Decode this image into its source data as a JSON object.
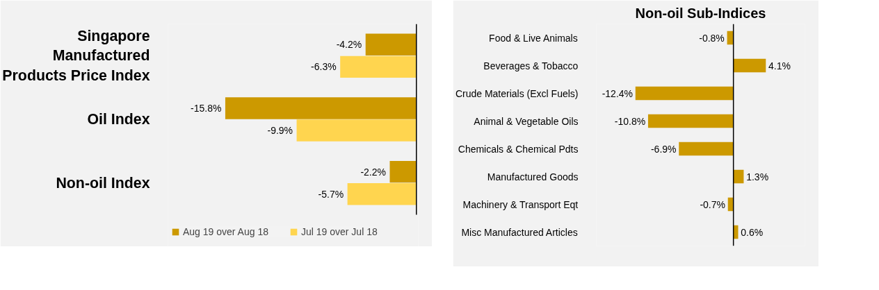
{
  "chart_data": [
    {
      "type": "bar",
      "orientation": "horizontal",
      "categories": [
        "Singapore Manufactured Products Price Index",
        "Oil Index",
        "Non-oil Index"
      ],
      "legend": "bottom",
      "series": [
        {
          "name": "Aug 19 over Aug 18",
          "color": "#cc9900",
          "values": [
            -4.2,
            -15.8,
            -2.2
          ],
          "value_labels": [
            "-4.2%",
            "-15.8%",
            "-2.2%"
          ]
        },
        {
          "name": "Jul 19 over Jul 18",
          "color": "#ffd54f",
          "values": [
            -6.3,
            -9.9,
            -5.7
          ],
          "value_labels": [
            "-6.3%",
            "-9.9%",
            "-5.7%"
          ]
        }
      ]
    },
    {
      "type": "bar",
      "orientation": "horizontal",
      "title": "Non-oil Sub-Indices",
      "categories": [
        "Food & Live Animals",
        "Beverages & Tobacco",
        "Crude Materials (Excl Fuels)",
        "Animal & Vegetable Oils",
        "Chemicals & Chemical Pdts",
        "Manufactured Goods",
        "Machinery & Transport Eqt",
        "Misc Manufactured Articles"
      ],
      "series": [
        {
          "color": "#cc9900",
          "values": [
            -0.8,
            4.1,
            -12.4,
            -10.8,
            -6.9,
            1.3,
            -0.7,
            0.6
          ],
          "value_labels": [
            "-0.8%",
            "4.1%",
            "-12.4%",
            "-10.8%",
            "-6.9%",
            "1.3%",
            "-0.7%",
            "0.6%"
          ]
        }
      ]
    }
  ]
}
